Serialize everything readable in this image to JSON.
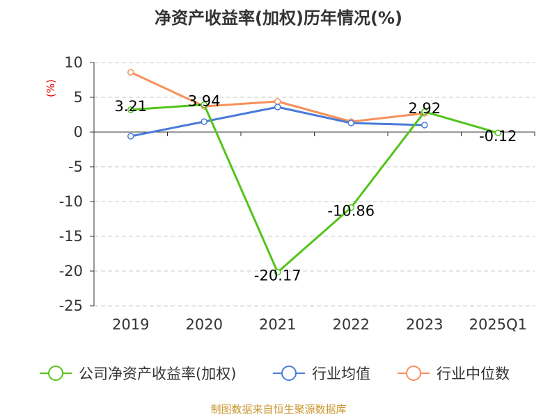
{
  "chart_data": {
    "type": "line",
    "title": "净资产收益率(加权)历年情况(%)",
    "ylabel": "(%)",
    "xlabel": "",
    "categories": [
      "2019",
      "2020",
      "2021",
      "2022",
      "2023",
      "2025Q1"
    ],
    "ylim": [
      -25,
      10
    ],
    "yticks": [
      10,
      5,
      0,
      -5,
      -10,
      -15,
      -20,
      -25
    ],
    "grid": true,
    "legend_position": "bottom",
    "series": [
      {
        "name": "公司净资产收益率(加权)",
        "color": "#52c41a",
        "values": [
          3.21,
          3.94,
          -20.17,
          -10.86,
          2.92,
          -0.12
        ],
        "labels": [
          "3.21",
          "3.94",
          "-20.17",
          "-10.86",
          "2.92",
          "-0.12"
        ]
      },
      {
        "name": "行业均值",
        "color": "#4a7bd8",
        "values": [
          -0.6,
          1.5,
          3.6,
          1.3,
          1.0,
          null
        ]
      },
      {
        "name": "行业中位数",
        "color": "#f7905a",
        "values": [
          8.6,
          3.7,
          4.4,
          1.5,
          2.7,
          null
        ]
      }
    ],
    "source": "制图数据来自恒生聚源数据库"
  }
}
